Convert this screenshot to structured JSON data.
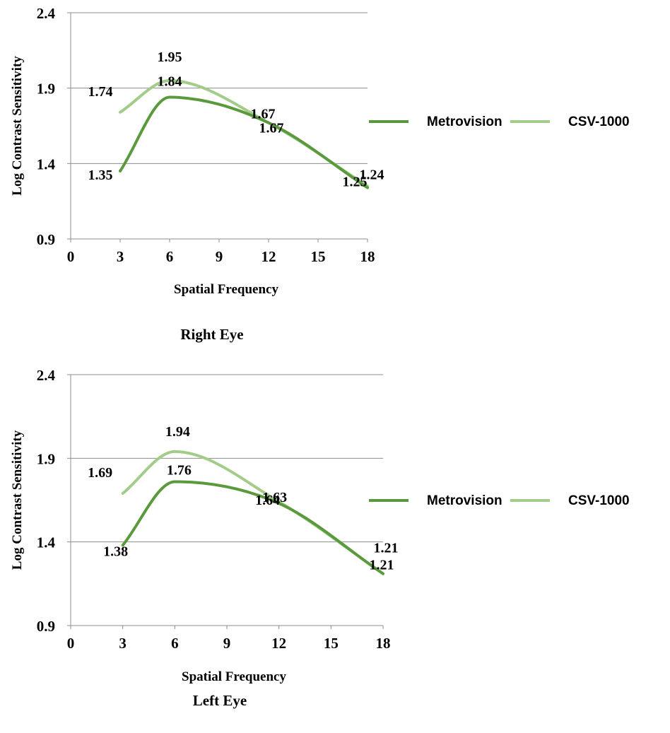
{
  "chart_data": [
    {
      "type": "line",
      "title": "Right Eye",
      "xlabel": "Spatial Frequency",
      "ylabel": "Log Contrast Sensitivity",
      "xlim": [
        0,
        18
      ],
      "ylim": [
        0.9,
        2.4
      ],
      "x_ticks": [
        "0",
        "3",
        "6",
        "9",
        "12",
        "15",
        "18"
      ],
      "y_ticks": [
        "0.9",
        "1.4",
        "1.9",
        "2.4"
      ],
      "grid": "horizontal",
      "legend_position": "right",
      "x": [
        3,
        6,
        12,
        18
      ],
      "series": [
        {
          "name": "Metrovision",
          "color": "#5a9a3c",
          "values": [
            1.35,
            1.84,
            1.67,
            1.24
          ],
          "data_labels": [
            "1.35",
            "1.84",
            "1.67",
            "1.24"
          ]
        },
        {
          "name": "CSV-1000",
          "color": "#a3cc8a",
          "values": [
            1.74,
            1.95,
            1.67,
            1.25
          ],
          "data_labels": [
            "1.74",
            "1.95",
            "1.67",
            "1.25"
          ]
        }
      ]
    },
    {
      "type": "line",
      "title": "Left Eye",
      "xlabel": "Spatial Frequency",
      "ylabel": "Log Contrast Sensitivity",
      "xlim": [
        0,
        18
      ],
      "ylim": [
        0.9,
        2.4
      ],
      "x_ticks": [
        "0",
        "3",
        "6",
        "9",
        "12",
        "15",
        "18"
      ],
      "y_ticks": [
        "0.9",
        "1.4",
        "1.9",
        "2.4"
      ],
      "grid": "horizontal",
      "legend_position": "right",
      "x": [
        3,
        6,
        12,
        18
      ],
      "series": [
        {
          "name": "Metrovision",
          "color": "#5a9a3c",
          "values": [
            1.38,
            1.76,
            1.63,
            1.21
          ],
          "data_labels": [
            "1.38",
            "1.76",
            "1.63",
            "1.21"
          ]
        },
        {
          "name": "CSV-1000",
          "color": "#a3cc8a",
          "values": [
            1.69,
            1.94,
            1.64,
            1.21
          ],
          "data_labels": [
            "1.69",
            "1.94",
            "1.64",
            "1.21"
          ]
        }
      ]
    }
  ]
}
